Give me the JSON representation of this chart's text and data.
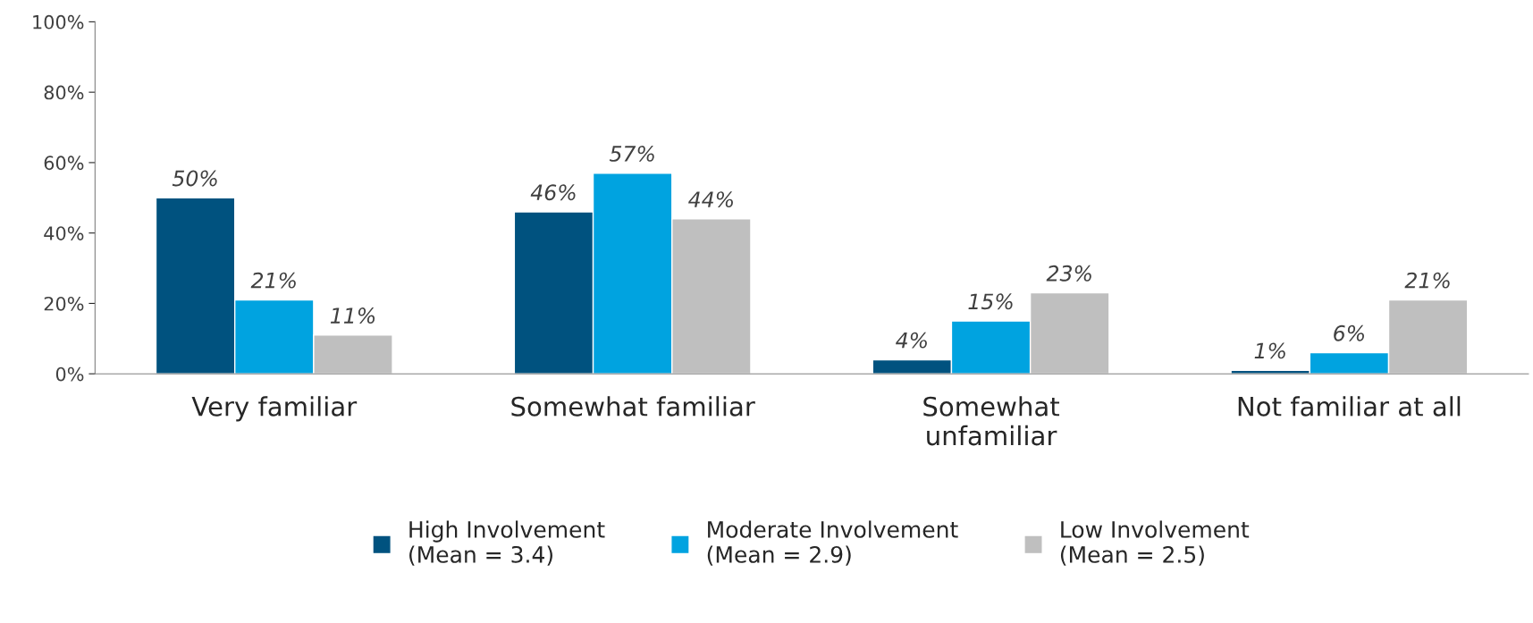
{
  "chart_data": {
    "type": "bar",
    "categories": [
      "Very familiar",
      "Somewhat familiar",
      "Somewhat\nunfamiliar",
      "Not familiar at all"
    ],
    "series": [
      {
        "name": "High Involvement\n(Mean = 3.4)",
        "color": "#00527f",
        "values": [
          50,
          46,
          4,
          1
        ],
        "value_labels": [
          "50%",
          "46%",
          "4%",
          "1%"
        ]
      },
      {
        "name": "Moderate Involvement\n(Mean = 2.9)",
        "color": "#00a3e0",
        "values": [
          21,
          57,
          15,
          6
        ],
        "value_labels": [
          "21%",
          "57%",
          "15%",
          "6%"
        ]
      },
      {
        "name": "Low Involvement\n(Mean = 2.5)",
        "color": "#bfbfbf",
        "values": [
          11,
          44,
          23,
          21
        ],
        "value_labels": [
          "11%",
          "44%",
          "23%",
          "21%"
        ]
      }
    ],
    "ylim": [
      0,
      100
    ],
    "yticks": [
      {
        "value": 0,
        "label": "0%"
      },
      {
        "value": 20,
        "label": "20%"
      },
      {
        "value": 40,
        "label": "40%"
      },
      {
        "value": 60,
        "label": "60%"
      },
      {
        "value": 80,
        "label": "80%"
      },
      {
        "value": 100,
        "label": "100%"
      }
    ],
    "grid": false,
    "legend": "bottom"
  }
}
